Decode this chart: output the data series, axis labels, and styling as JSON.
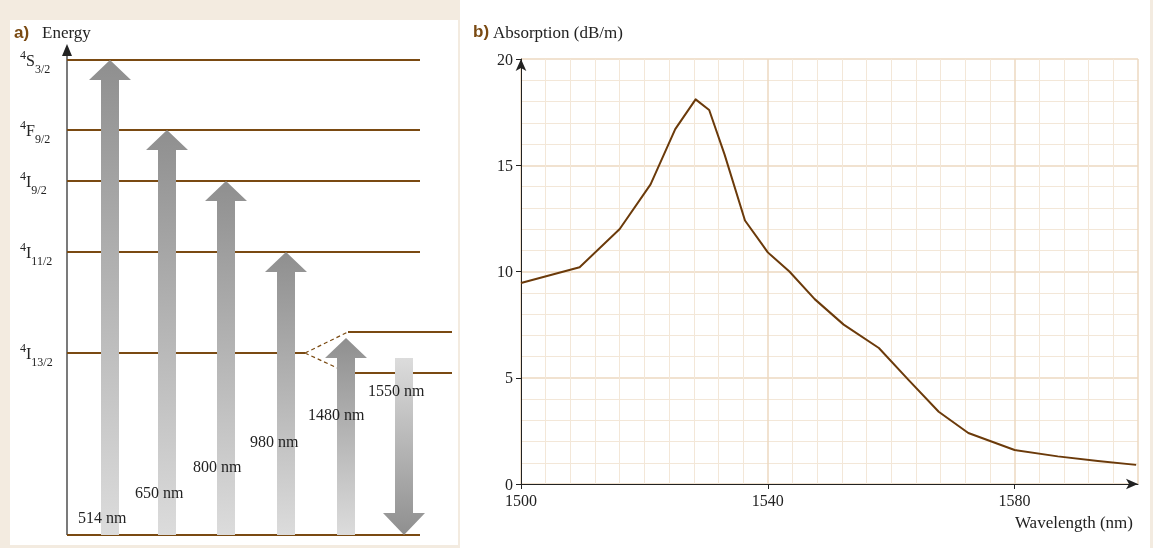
{
  "chart_data": [
    {
      "type": "other",
      "title": "a)",
      "ylabel": "Energy",
      "categories": [
        "$^{4}$S$_{3/2}$",
        "$^{4}$F$_{9/2}$",
        "$^{4}$I$_{9/2}$",
        "$^{4}$I$_{11/2}$",
        "$^{4}$I$_{13/2}$"
      ],
      "annotations": [
        "514 nm",
        "650 nm",
        "800 nm",
        "980 nm",
        "1480 nm",
        "1550 nm"
      ]
    },
    {
      "type": "line",
      "title": "b)",
      "ylabel": "Absorption (dB/m)",
      "xlabel": "Wavelength (nm)",
      "color": "#6b3a0a",
      "x": [
        1500,
        1509.5,
        1516,
        1521,
        1525,
        1528.3,
        1530.5,
        1533,
        1536.3,
        1540,
        1543.5,
        1547.6,
        1552.3,
        1558,
        1562.8,
        1567.7,
        1572.5,
        1580,
        1587,
        1593.5,
        1599.7
      ],
      "values": [
        9.46,
        10.2,
        12.0,
        14.1,
        16.7,
        18.1,
        17.6,
        15.5,
        12.4,
        10.9,
        10.0,
        8.7,
        7.5,
        6.4,
        4.9,
        3.4,
        2.4,
        1.6,
        1.3,
        1.08,
        0.9
      ],
      "xlim": [
        1500,
        1600
      ],
      "xticks": [
        1500,
        1540,
        1580
      ],
      "ylim": [
        0,
        20
      ],
      "yticks": [
        0,
        5,
        10,
        15,
        20
      ],
      "grid": true,
      "marker": "none",
      "line_style": "solid"
    }
  ]
}
